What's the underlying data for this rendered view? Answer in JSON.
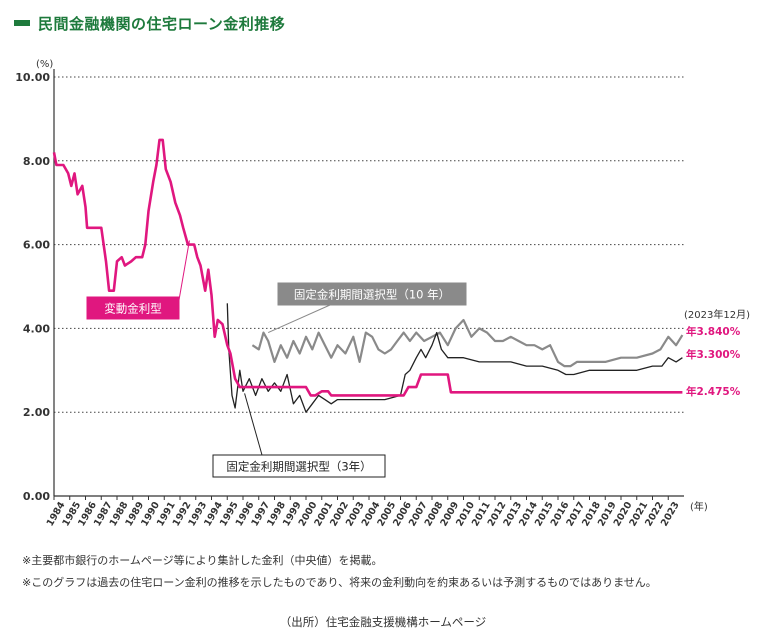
{
  "header": {
    "title": "民間金融機関の住宅ローン金利推移"
  },
  "chart_data": {
    "type": "line",
    "title": "民間金融機関の住宅ローン金利推移",
    "ylabel": "(%)",
    "xlabel": "(年)",
    "ylim": [
      0,
      10
    ],
    "xlim": [
      1984,
      2024
    ],
    "yticks": [
      "0.00",
      "2.00",
      "4.00",
      "6.00",
      "8.00",
      "10.00"
    ],
    "xticks": [
      "1984",
      "1985",
      "1986",
      "1987",
      "1988",
      "1989",
      "1990",
      "1991",
      "1992",
      "1993",
      "1994",
      "1995",
      "1996",
      "1997",
      "1998",
      "1999",
      "2000",
      "2001",
      "2002",
      "2003",
      "2004",
      "2005",
      "2006",
      "2007",
      "2008",
      "2009",
      "2010",
      "2011",
      "2012",
      "2013",
      "2014",
      "2015",
      "2016",
      "2017",
      "2018",
      "2019",
      "2020",
      "2021",
      "2022",
      "2023"
    ],
    "grid": "horizontal dotted",
    "end_label": "(2023年12月)",
    "series": [
      {
        "name": "変動金利型",
        "color": "#e0177f",
        "end_value_label": "年2.475%",
        "points": [
          [
            1984.0,
            8.2
          ],
          [
            1984.15,
            7.9
          ],
          [
            1984.6,
            7.9
          ],
          [
            1984.9,
            7.7
          ],
          [
            1985.1,
            7.4
          ],
          [
            1985.3,
            7.7
          ],
          [
            1985.5,
            7.2
          ],
          [
            1985.8,
            7.4
          ],
          [
            1986.0,
            6.9
          ],
          [
            1986.1,
            6.4
          ],
          [
            1986.6,
            6.4
          ],
          [
            1987.0,
            6.4
          ],
          [
            1987.3,
            5.6
          ],
          [
            1987.5,
            4.9
          ],
          [
            1987.8,
            4.9
          ],
          [
            1988.0,
            5.6
          ],
          [
            1988.3,
            5.7
          ],
          [
            1988.5,
            5.5
          ],
          [
            1988.9,
            5.6
          ],
          [
            1989.2,
            5.7
          ],
          [
            1989.6,
            5.7
          ],
          [
            1989.8,
            6.0
          ],
          [
            1990.0,
            6.8
          ],
          [
            1990.3,
            7.5
          ],
          [
            1990.5,
            7.9
          ],
          [
            1990.7,
            8.5
          ],
          [
            1990.9,
            8.5
          ],
          [
            1991.1,
            7.8
          ],
          [
            1991.4,
            7.5
          ],
          [
            1991.7,
            7.0
          ],
          [
            1992.0,
            6.7
          ],
          [
            1992.2,
            6.4
          ],
          [
            1992.5,
            6.0
          ],
          [
            1992.9,
            6.0
          ],
          [
            1993.1,
            5.7
          ],
          [
            1993.3,
            5.5
          ],
          [
            1993.6,
            4.9
          ],
          [
            1993.8,
            5.4
          ],
          [
            1994.0,
            4.8
          ],
          [
            1994.2,
            3.8
          ],
          [
            1994.4,
            4.2
          ],
          [
            1994.7,
            4.1
          ],
          [
            1995.0,
            3.6
          ],
          [
            1995.2,
            3.4
          ],
          [
            1995.5,
            2.8
          ],
          [
            1995.8,
            2.6
          ],
          [
            1996.0,
            2.6
          ],
          [
            2000.0,
            2.6
          ],
          [
            2000.3,
            2.4
          ],
          [
            2000.6,
            2.4
          ],
          [
            2001.0,
            2.5
          ],
          [
            2001.4,
            2.5
          ],
          [
            2001.6,
            2.4
          ],
          [
            2006.2,
            2.4
          ],
          [
            2006.5,
            2.6
          ],
          [
            2007.0,
            2.6
          ],
          [
            2007.3,
            2.9
          ],
          [
            2009.0,
            2.9
          ],
          [
            2009.2,
            2.475
          ],
          [
            2023.9,
            2.475
          ]
        ]
      },
      {
        "name": "固定金利期間選択型(10年)",
        "color": "#8a8a8a",
        "end_value_label": "年3.840%",
        "points": [
          [
            1996.6,
            3.6
          ],
          [
            1997.0,
            3.5
          ],
          [
            1997.3,
            3.9
          ],
          [
            1997.6,
            3.7
          ],
          [
            1998.0,
            3.2
          ],
          [
            1998.4,
            3.6
          ],
          [
            1998.8,
            3.3
          ],
          [
            1999.2,
            3.7
          ],
          [
            1999.6,
            3.4
          ],
          [
            2000.0,
            3.8
          ],
          [
            2000.4,
            3.5
          ],
          [
            2000.8,
            3.9
          ],
          [
            2001.2,
            3.6
          ],
          [
            2001.6,
            3.3
          ],
          [
            2002.0,
            3.6
          ],
          [
            2002.5,
            3.4
          ],
          [
            2003.0,
            3.8
          ],
          [
            2003.4,
            3.2
          ],
          [
            2003.8,
            3.9
          ],
          [
            2004.2,
            3.8
          ],
          [
            2004.6,
            3.5
          ],
          [
            2005.0,
            3.4
          ],
          [
            2005.4,
            3.5
          ],
          [
            2005.8,
            3.7
          ],
          [
            2006.2,
            3.9
          ],
          [
            2006.6,
            3.7
          ],
          [
            2007.0,
            3.9
          ],
          [
            2007.5,
            3.7
          ],
          [
            2008.0,
            3.8
          ],
          [
            2008.5,
            3.9
          ],
          [
            2009.0,
            3.6
          ],
          [
            2009.5,
            4.0
          ],
          [
            2010.0,
            4.2
          ],
          [
            2010.5,
            3.8
          ],
          [
            2011.0,
            4.0
          ],
          [
            2011.5,
            3.9
          ],
          [
            2012.0,
            3.7
          ],
          [
            2012.5,
            3.7
          ],
          [
            2013.0,
            3.8
          ],
          [
            2013.5,
            3.7
          ],
          [
            2014.0,
            3.6
          ],
          [
            2014.5,
            3.6
          ],
          [
            2015.0,
            3.5
          ],
          [
            2015.5,
            3.6
          ],
          [
            2016.0,
            3.2
          ],
          [
            2016.4,
            3.1
          ],
          [
            2016.8,
            3.1
          ],
          [
            2017.2,
            3.2
          ],
          [
            2018.0,
            3.2
          ],
          [
            2019.0,
            3.2
          ],
          [
            2020.0,
            3.3
          ],
          [
            2021.0,
            3.3
          ],
          [
            2022.0,
            3.4
          ],
          [
            2022.5,
            3.5
          ],
          [
            2023.0,
            3.8
          ],
          [
            2023.5,
            3.6
          ],
          [
            2023.9,
            3.84
          ]
        ]
      },
      {
        "name": "固定金利期間選択型(3年)",
        "color": "#222222",
        "end_value_label": "年3.300%",
        "points": [
          [
            1995.0,
            4.6
          ],
          [
            1995.1,
            3.5
          ],
          [
            1995.3,
            2.4
          ],
          [
            1995.5,
            2.1
          ],
          [
            1995.8,
            3.0
          ],
          [
            1996.0,
            2.5
          ],
          [
            1996.4,
            2.8
          ],
          [
            1996.8,
            2.4
          ],
          [
            1997.2,
            2.8
          ],
          [
            1997.6,
            2.5
          ],
          [
            1998.0,
            2.7
          ],
          [
            1998.4,
            2.5
          ],
          [
            1998.8,
            2.9
          ],
          [
            1999.2,
            2.2
          ],
          [
            1999.6,
            2.4
          ],
          [
            2000.0,
            2.0
          ],
          [
            2000.4,
            2.2
          ],
          [
            2000.8,
            2.4
          ],
          [
            2001.2,
            2.3
          ],
          [
            2001.6,
            2.2
          ],
          [
            2002.0,
            2.3
          ],
          [
            2003.0,
            2.3
          ],
          [
            2004.0,
            2.3
          ],
          [
            2005.0,
            2.3
          ],
          [
            2006.0,
            2.4
          ],
          [
            2006.3,
            2.9
          ],
          [
            2006.6,
            3.0
          ],
          [
            2007.0,
            3.3
          ],
          [
            2007.3,
            3.5
          ],
          [
            2007.6,
            3.3
          ],
          [
            2008.0,
            3.6
          ],
          [
            2008.3,
            3.9
          ],
          [
            2008.6,
            3.5
          ],
          [
            2009.0,
            3.3
          ],
          [
            2010.0,
            3.3
          ],
          [
            2011.0,
            3.2
          ],
          [
            2012.0,
            3.2
          ],
          [
            2013.0,
            3.2
          ],
          [
            2014.0,
            3.1
          ],
          [
            2015.0,
            3.1
          ],
          [
            2016.0,
            3.0
          ],
          [
            2016.5,
            2.9
          ],
          [
            2017.0,
            2.9
          ],
          [
            2018.0,
            3.0
          ],
          [
            2019.0,
            3.0
          ],
          [
            2020.0,
            3.0
          ],
          [
            2021.0,
            3.0
          ],
          [
            2022.0,
            3.1
          ],
          [
            2022.6,
            3.1
          ],
          [
            2023.0,
            3.3
          ],
          [
            2023.5,
            3.2
          ],
          [
            2023.9,
            3.3
          ]
        ]
      }
    ],
    "series_labels": [
      {
        "text": "変動金利型",
        "style": "filled",
        "color": "#e0177f"
      },
      {
        "text": "固定金利期間選択型（10 年）",
        "style": "filled",
        "color": "#8a8a8a"
      },
      {
        "text": "固定金利期間選択型（3年）",
        "style": "outlined",
        "color": "#222222"
      }
    ]
  },
  "notes": {
    "note1": "※主要都市銀行のホームページ等により集計した金利（中央値）を掲載。",
    "note2": "※このグラフは過去の住宅ローン金利の推移を示したものであり、将来の金利動向を約束あるいは予測するものではありません。"
  },
  "source": "（出所）住宅金融支援機構ホームページ"
}
